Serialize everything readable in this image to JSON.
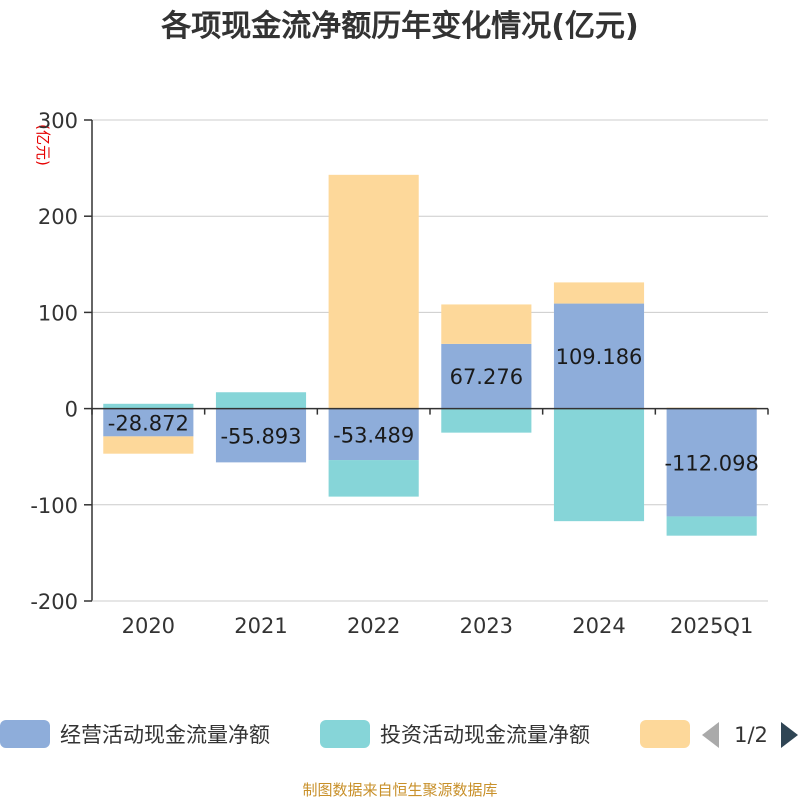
{
  "chart_data": {
    "type": "bar",
    "stacked": true,
    "title": "各项现金流净额历年变化情况(亿元)",
    "ylabel": "(亿元)",
    "xlabel": "",
    "categories": [
      "2020",
      "2021",
      "2022",
      "2023",
      "2024",
      "2025Q1"
    ],
    "ylim": [
      -200,
      300
    ],
    "yticks": [
      300,
      200,
      100,
      0,
      -100,
      -200
    ],
    "series": [
      {
        "name": "经营活动现金流量净额",
        "color": "#8eadda",
        "values": [
          -28.872,
          -55.893,
          -53.489,
          67.276,
          109.186,
          -112.098
        ]
      },
      {
        "name": "投资活动现金流量净额",
        "color": "#86d5d8",
        "values": [
          5,
          17,
          -38,
          -25,
          -117,
          -20
        ]
      },
      {
        "name": "",
        "color": "#fdd89a",
        "values": [
          -18,
          0,
          243,
          41,
          22,
          1
        ]
      }
    ],
    "data_labels": [
      "-28.872",
      "-55.893",
      "-53.489",
      "67.276",
      "109.186",
      "-112.098"
    ],
    "legend": {
      "position": "bottom",
      "page": "1/2"
    },
    "source": "制图数据来自恒生聚源数据库"
  }
}
